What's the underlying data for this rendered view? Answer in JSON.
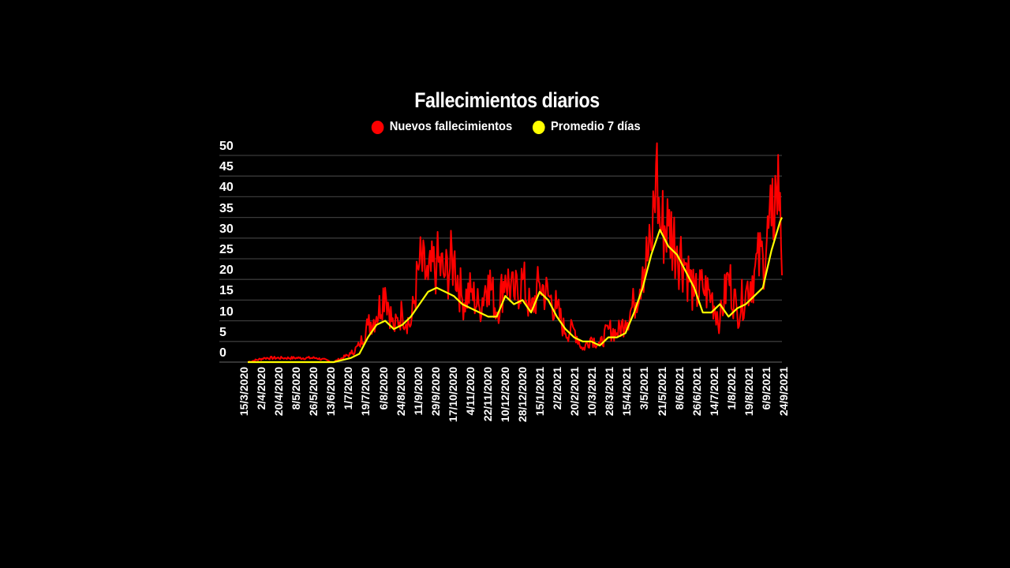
{
  "chart_data": {
    "type": "line",
    "title": "Fallecimientos diarios",
    "legend": [
      {
        "name": "Nuevos fallecimientos",
        "color": "#ff0000"
      },
      {
        "name": "Promedio 7 días",
        "color": "#ffff00"
      }
    ],
    "legend_position": "top",
    "xlabel": "",
    "ylabel": "",
    "ylim": [
      0,
      50
    ],
    "yticks": [
      0,
      5,
      10,
      15,
      20,
      25,
      30,
      35,
      40,
      45,
      50
    ],
    "grid": true,
    "xticks": [
      "15/3/2020",
      "2/4/2020",
      "20/4/2020",
      "8/5/2020",
      "26/5/2020",
      "13/6/2020",
      "1/7/2020",
      "19/7/2020",
      "6/8/2020",
      "24/8/2020",
      "11/9/2020",
      "29/9/2020",
      "17/10/2020",
      "4/11/2020",
      "22/11/2020",
      "10/12/2020",
      "28/12/2020",
      "15/1/2021",
      "2/2/2021",
      "20/2/2021",
      "10/3/2021",
      "28/3/2021",
      "15/4/2021",
      "3/5/2021",
      "21/5/2021",
      "8/6/2021",
      "26/6/2021",
      "14/7/2021",
      "1/8/2021",
      "19/8/2021",
      "6/9/2021",
      "24/9/2021"
    ],
    "series": [
      {
        "name": "Promedio 7 días",
        "color": "#ffff00",
        "x": [
          "15/3/2020",
          "2/4/2020",
          "20/4/2020",
          "8/5/2020",
          "26/5/2020",
          "13/6/2020",
          "1/7/2020",
          "10/7/2020",
          "19/7/2020",
          "28/7/2020",
          "6/8/2020",
          "15/8/2020",
          "24/8/2020",
          "2/9/2020",
          "11/9/2020",
          "20/9/2020",
          "29/9/2020",
          "8/10/2020",
          "17/10/2020",
          "26/10/2020",
          "4/11/2020",
          "13/11/2020",
          "22/11/2020",
          "1/12/2020",
          "10/12/2020",
          "19/12/2020",
          "28/12/2020",
          "6/1/2021",
          "15/1/2021",
          "24/1/2021",
          "2/2/2021",
          "11/2/2021",
          "20/2/2021",
          "1/3/2021",
          "10/3/2021",
          "19/3/2021",
          "28/3/2021",
          "6/4/2021",
          "15/4/2021",
          "24/4/2021",
          "3/5/2021",
          "12/5/2021",
          "21/5/2021",
          "30/5/2021",
          "8/6/2021",
          "17/6/2021",
          "26/6/2021",
          "5/7/2021",
          "14/7/2021",
          "23/7/2021",
          "1/8/2021",
          "10/8/2021",
          "19/8/2021",
          "28/8/2021",
          "6/9/2021",
          "15/9/2021",
          "24/9/2021",
          "26/9/2021"
        ],
        "values": [
          0,
          0,
          0,
          0,
          0,
          0,
          1,
          2,
          6,
          9,
          10,
          8,
          9,
          11,
          14,
          17,
          18,
          17,
          16,
          14,
          13,
          12,
          11,
          11,
          16,
          14,
          15,
          12,
          17,
          15,
          11,
          8,
          6,
          5,
          5,
          4,
          6,
          6,
          7,
          12,
          18,
          26,
          32,
          28,
          26,
          22,
          18,
          12,
          12,
          14,
          11,
          13,
          14,
          16,
          18,
          27,
          34,
          35
        ]
      },
      {
        "name": "Nuevos fallecimientos",
        "color": "#ff0000",
        "x": [
          "15/3/2020",
          "2/4/2020",
          "20/4/2020",
          "8/5/2020",
          "26/5/2020",
          "13/6/2020",
          "1/7/2020",
          "10/7/2020",
          "19/7/2020",
          "28/7/2020",
          "6/8/2020",
          "15/8/2020",
          "24/8/2020",
          "2/9/2020",
          "11/9/2020",
          "20/9/2020",
          "29/9/2020",
          "8/10/2020",
          "17/10/2020",
          "26/10/2020",
          "4/11/2020",
          "13/11/2020",
          "22/11/2020",
          "1/12/2020",
          "10/12/2020",
          "19/12/2020",
          "28/12/2020",
          "6/1/2021",
          "15/1/2021",
          "24/1/2021",
          "2/2/2021",
          "11/2/2021",
          "20/2/2021",
          "1/3/2021",
          "10/3/2021",
          "19/3/2021",
          "28/3/2021",
          "6/4/2021",
          "15/4/2021",
          "24/4/2021",
          "3/5/2021",
          "12/5/2021",
          "17/5/2021",
          "21/5/2021",
          "30/5/2021",
          "8/6/2021",
          "17/6/2021",
          "26/6/2021",
          "5/7/2021",
          "14/7/2021",
          "23/7/2021",
          "1/8/2021",
          "10/8/2021",
          "19/8/2021",
          "28/8/2021",
          "6/9/2021",
          "15/9/2021",
          "20/9/2021",
          "24/9/2021",
          "26/9/2021"
        ],
        "values": [
          0,
          1,
          1,
          1,
          1,
          0,
          2,
          4,
          9,
          11,
          18,
          8,
          12,
          9,
          24,
          20,
          24,
          21,
          25,
          15,
          17,
          13,
          21,
          12,
          21,
          16,
          20,
          12,
          19,
          16,
          13,
          7,
          8,
          3,
          6,
          4,
          8,
          7,
          10,
          14,
          23,
          27,
          48,
          33,
          33,
          28,
          24,
          16,
          18,
          16,
          10,
          21,
          12,
          17,
          22,
          26,
          33,
          42,
          41,
          21
        ]
      }
    ]
  }
}
